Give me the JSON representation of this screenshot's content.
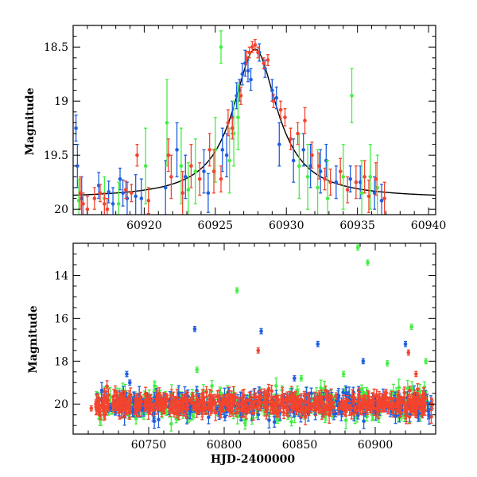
{
  "chart_data": [
    {
      "type": "scatter",
      "title": "",
      "xlabel": "",
      "ylabel": "Magnitude",
      "xlim": [
        60915,
        60940.5
      ],
      "ylim": [
        20.05,
        18.3
      ],
      "x_ticks": [
        60920,
        60925,
        60930,
        60935,
        60940
      ],
      "y_ticks": [
        18.5,
        19,
        19.5,
        20
      ],
      "y_tick_labels": [
        "18.5",
        "19",
        "19.5",
        "20"
      ],
      "grid": false,
      "colors": {
        "blue": "#1f5fe0",
        "green": "#44ee44",
        "red": "#f2442e",
        "model": "#000000"
      },
      "model_curve": {
        "peak_x": 60927.8,
        "peak_mag": 18.52,
        "baseline_mag": 19.9,
        "width_days": 1.9
      },
      "series": [
        {
          "color": "blue",
          "points": [
            {
              "x": 60915.2,
              "y": 19.25,
              "err": 0.12
            },
            {
              "x": 60915.3,
              "y": 19.6,
              "err": 0.2
            },
            {
              "x": 60915.6,
              "y": 19.9,
              "err": 0.2
            },
            {
              "x": 60916.8,
              "y": 19.78,
              "err": 0.12
            },
            {
              "x": 60917.5,
              "y": 19.84,
              "err": 0.1
            },
            {
              "x": 60917.8,
              "y": 19.95,
              "err": 0.15
            },
            {
              "x": 60918.3,
              "y": 19.72,
              "err": 0.1
            },
            {
              "x": 60918.5,
              "y": 19.85,
              "err": 0.12
            },
            {
              "x": 60918.8,
              "y": 19.9,
              "err": 0.15
            },
            {
              "x": 60919.4,
              "y": 19.88,
              "err": 0.2
            },
            {
              "x": 60919.8,
              "y": 19.9,
              "err": 0.18
            },
            {
              "x": 60921.5,
              "y": 19.8,
              "err": 0.25
            },
            {
              "x": 60922.3,
              "y": 19.45,
              "err": 0.25
            },
            {
              "x": 60922.9,
              "y": 19.7,
              "err": 0.2
            },
            {
              "x": 60924.2,
              "y": 19.65,
              "err": 0.2
            },
            {
              "x": 60924.5,
              "y": 19.85,
              "err": 0.18
            },
            {
              "x": 60925.5,
              "y": 19.45,
              "err": 0.2
            },
            {
              "x": 60925.8,
              "y": 19.5,
              "err": 0.2
            },
            {
              "x": 60926.2,
              "y": 19.15,
              "err": 0.15
            },
            {
              "x": 60926.5,
              "y": 18.95,
              "err": 0.12
            },
            {
              "x": 60926.7,
              "y": 18.9,
              "err": 0.1
            },
            {
              "x": 60926.9,
              "y": 18.75,
              "err": 0.1
            },
            {
              "x": 60927.1,
              "y": 18.65,
              "err": 0.12
            },
            {
              "x": 60927.3,
              "y": 18.72,
              "err": 0.1
            },
            {
              "x": 60927.5,
              "y": 18.8,
              "err": 0.1
            },
            {
              "x": 60928.1,
              "y": 18.55,
              "err": 0.08
            },
            {
              "x": 60928.5,
              "y": 18.7,
              "err": 0.08
            },
            {
              "x": 60929.0,
              "y": 18.9,
              "err": 0.1
            },
            {
              "x": 60929.3,
              "y": 18.97,
              "err": 0.1
            },
            {
              "x": 60929.5,
              "y": 19.4,
              "err": 0.2
            },
            {
              "x": 60930.5,
              "y": 19.55,
              "err": 0.2
            },
            {
              "x": 60931.2,
              "y": 19.45,
              "err": 0.15
            },
            {
              "x": 60931.7,
              "y": 19.6,
              "err": 0.2
            },
            {
              "x": 60932.4,
              "y": 19.65,
              "err": 0.2
            },
            {
              "x": 60932.8,
              "y": 19.55,
              "err": 0.15
            },
            {
              "x": 60933.5,
              "y": 19.75,
              "err": 0.15
            },
            {
              "x": 60934.5,
              "y": 19.72,
              "err": 0.12
            },
            {
              "x": 60935.2,
              "y": 19.75,
              "err": 0.15
            },
            {
              "x": 60936.2,
              "y": 19.85,
              "err": 0.15
            },
            {
              "x": 60936.7,
              "y": 19.92,
              "err": 0.15
            }
          ]
        },
        {
          "color": "green",
          "points": [
            {
              "x": 60915.4,
              "y": 19.92,
              "err": 0.2
            },
            {
              "x": 60917.2,
              "y": 19.9,
              "err": 0.2
            },
            {
              "x": 60918.2,
              "y": 19.95,
              "err": 0.2
            },
            {
              "x": 60920.1,
              "y": 19.6,
              "err": 0.35
            },
            {
              "x": 60921.6,
              "y": 19.2,
              "err": 0.4
            },
            {
              "x": 60922.6,
              "y": 19.6,
              "err": 0.35
            },
            {
              "x": 60923.1,
              "y": 19.82,
              "err": 0.25
            },
            {
              "x": 60923.6,
              "y": 19.65,
              "err": 0.3
            },
            {
              "x": 60925.0,
              "y": 19.45,
              "err": 0.3
            },
            {
              "x": 60925.4,
              "y": 18.5,
              "err": 0.15
            },
            {
              "x": 60926.0,
              "y": 19.55,
              "err": 0.3
            },
            {
              "x": 60926.3,
              "y": 19.3,
              "err": 0.3
            },
            {
              "x": 60926.6,
              "y": 19.15,
              "err": 0.3
            },
            {
              "x": 60930.9,
              "y": 19.6,
              "err": 0.3
            },
            {
              "x": 60931.5,
              "y": 19.7,
              "err": 0.3
            },
            {
              "x": 60932.2,
              "y": 19.8,
              "err": 0.35
            },
            {
              "x": 60932.9,
              "y": 19.9,
              "err": 0.35
            },
            {
              "x": 60934.0,
              "y": 19.7,
              "err": 0.3
            },
            {
              "x": 60934.6,
              "y": 18.95,
              "err": 0.25
            },
            {
              "x": 60935.3,
              "y": 19.85,
              "err": 0.3
            },
            {
              "x": 60935.9,
              "y": 19.7,
              "err": 0.3
            },
            {
              "x": 60936.4,
              "y": 19.8,
              "err": 0.3
            }
          ]
        },
        {
          "color": "red",
          "points": [
            {
              "x": 60915.5,
              "y": 19.85,
              "err": 0.15
            },
            {
              "x": 60915.7,
              "y": 19.95,
              "err": 0.1
            },
            {
              "x": 60916.0,
              "y": 20.0,
              "err": 0.12
            },
            {
              "x": 60916.5,
              "y": 19.9,
              "err": 0.1
            },
            {
              "x": 60916.9,
              "y": 19.85,
              "err": 0.08
            },
            {
              "x": 60917.2,
              "y": 19.95,
              "err": 0.1
            },
            {
              "x": 60917.4,
              "y": 20.0,
              "err": 0.1
            },
            {
              "x": 60918.7,
              "y": 19.82,
              "err": 0.08
            },
            {
              "x": 60919.1,
              "y": 19.85,
              "err": 0.08
            },
            {
              "x": 60919.5,
              "y": 19.5,
              "err": 0.1
            },
            {
              "x": 60920.3,
              "y": 19.92,
              "err": 0.12
            },
            {
              "x": 60921.7,
              "y": 19.5,
              "err": 0.15
            },
            {
              "x": 60921.9,
              "y": 19.7,
              "err": 0.2
            },
            {
              "x": 60922.7,
              "y": 19.85,
              "err": 0.2
            },
            {
              "x": 60923.3,
              "y": 19.6,
              "err": 0.2
            },
            {
              "x": 60923.9,
              "y": 19.72,
              "err": 0.15
            },
            {
              "x": 60924.6,
              "y": 19.45,
              "err": 0.15
            },
            {
              "x": 60924.9,
              "y": 19.65,
              "err": 0.2
            },
            {
              "x": 60925.4,
              "y": 19.72,
              "err": 0.12
            },
            {
              "x": 60925.9,
              "y": 19.2,
              "err": 0.12
            },
            {
              "x": 60926.2,
              "y": 19.25,
              "err": 0.1
            },
            {
              "x": 60926.8,
              "y": 18.95,
              "err": 0.08
            },
            {
              "x": 60927.2,
              "y": 18.6,
              "err": 0.06
            },
            {
              "x": 60927.4,
              "y": 18.55,
              "err": 0.05
            },
            {
              "x": 60927.6,
              "y": 18.5,
              "err": 0.05
            },
            {
              "x": 60927.8,
              "y": 18.48,
              "err": 0.05
            },
            {
              "x": 60928.0,
              "y": 18.55,
              "err": 0.05
            },
            {
              "x": 60928.4,
              "y": 18.65,
              "err": 0.05
            },
            {
              "x": 60928.7,
              "y": 18.62,
              "err": 0.05
            },
            {
              "x": 60929.1,
              "y": 19.0,
              "err": 0.06
            },
            {
              "x": 60929.6,
              "y": 19.08,
              "err": 0.08
            },
            {
              "x": 60929.9,
              "y": 19.15,
              "err": 0.08
            },
            {
              "x": 60930.3,
              "y": 19.35,
              "err": 0.1
            },
            {
              "x": 60930.8,
              "y": 19.3,
              "err": 0.1
            },
            {
              "x": 60931.3,
              "y": 19.18,
              "err": 0.12
            },
            {
              "x": 60931.8,
              "y": 19.5,
              "err": 0.12
            },
            {
              "x": 60932.3,
              "y": 19.6,
              "err": 0.12
            },
            {
              "x": 60932.7,
              "y": 19.72,
              "err": 0.1
            },
            {
              "x": 60933.1,
              "y": 19.75,
              "err": 0.12
            },
            {
              "x": 60933.8,
              "y": 19.65,
              "err": 0.12
            },
            {
              "x": 60934.3,
              "y": 19.82,
              "err": 0.12
            },
            {
              "x": 60934.9,
              "y": 19.75,
              "err": 0.15
            },
            {
              "x": 60935.5,
              "y": 19.7,
              "err": 0.15
            },
            {
              "x": 60935.8,
              "y": 19.88,
              "err": 0.15
            },
            {
              "x": 60936.3,
              "y": 19.72,
              "err": 0.15
            },
            {
              "x": 60936.9,
              "y": 19.9,
              "err": 0.15
            }
          ]
        }
      ]
    },
    {
      "type": "scatter",
      "title": "",
      "xlabel": "HJD-2400000",
      "ylabel": "Magnitude",
      "xlim": [
        60700,
        60940
      ],
      "ylim": [
        21.4,
        12.5
      ],
      "x_ticks": [
        60750,
        60800,
        60850,
        60900
      ],
      "y_ticks": [
        14,
        16,
        18,
        20
      ],
      "grid": false,
      "colors": {
        "blue": "#1f5fe0",
        "green": "#44ee44",
        "red": "#f2442e"
      },
      "baseline": {
        "mag": 20.0,
        "scatter": 0.25,
        "x_range": [
          60715,
          60938
        ]
      },
      "series": [
        {
          "color": "blue",
          "points": [
            {
              "x": 60735.5,
              "y": 18.6
            },
            {
              "x": 60737.5,
              "y": 19.0
            },
            {
              "x": 60780.5,
              "y": 16.5
            },
            {
              "x": 60824.5,
              "y": 16.6
            },
            {
              "x": 60846.5,
              "y": 18.8
            },
            {
              "x": 60862.0,
              "y": 17.2
            },
            {
              "x": 60892.0,
              "y": 18.0
            },
            {
              "x": 60920.0,
              "y": 17.2
            },
            {
              "x": 60935.5,
              "y": 20.5
            }
          ]
        },
        {
          "color": "green",
          "points": [
            {
              "x": 60782.0,
              "y": 18.4
            },
            {
              "x": 60808.5,
              "y": 14.7
            },
            {
              "x": 60888.5,
              "y": 12.7
            },
            {
              "x": 60895.0,
              "y": 13.4
            },
            {
              "x": 60908.0,
              "y": 18.1
            },
            {
              "x": 60924.0,
              "y": 16.4
            },
            {
              "x": 60933.5,
              "y": 18.0
            },
            {
              "x": 60851.0,
              "y": 18.8
            },
            {
              "x": 60879.0,
              "y": 18.6
            }
          ]
        },
        {
          "color": "red",
          "points": [
            {
              "x": 60712.0,
              "y": 20.2
            },
            {
              "x": 60715.0,
              "y": 20.0
            },
            {
              "x": 60717.0,
              "y": 19.8
            },
            {
              "x": 60822.5,
              "y": 17.5
            },
            {
              "x": 60922.0,
              "y": 17.6
            },
            {
              "x": 60927.0,
              "y": 18.6
            }
          ]
        }
      ]
    }
  ]
}
